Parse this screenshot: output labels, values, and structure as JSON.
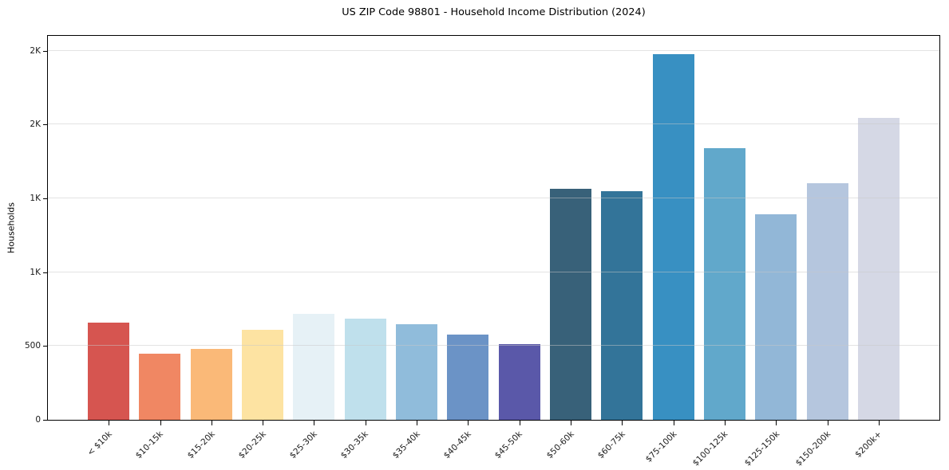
{
  "title": "US ZIP Code 98801 - Household Income Distribution (2024)",
  "chart_data": {
    "type": "bar",
    "title": "US ZIP Code 98801 - Household Income Distribution (2024)",
    "xlabel": "",
    "ylabel": "Households",
    "categories": [
      "< $10k",
      "$10-15k",
      "$15-20k",
      "$20-25k",
      "$25-30k",
      "$30-35k",
      "$35-40k",
      "$40-45k",
      "$45-50k",
      "$50-60k",
      "$60-75k",
      "$75-100k",
      "$100-125k",
      "$125-150k",
      "$150-200k",
      "$200k+"
    ],
    "values": [
      660,
      450,
      480,
      610,
      715,
      685,
      645,
      575,
      515,
      1565,
      1550,
      2475,
      1840,
      1390,
      1600,
      2045
    ],
    "bar_colors": [
      "#d65550",
      "#f08763",
      "#fab978",
      "#fde3a2",
      "#e6f1f6",
      "#bfe0ec",
      "#90bcdb",
      "#6b93c6",
      "#5a58a9",
      "#386179",
      "#337499",
      "#3890c2",
      "#61a8cb",
      "#92b7d7",
      "#b5c6de",
      "#d5d8e5"
    ],
    "ylim": [
      0,
      2600
    ],
    "yticks": [
      {
        "value": 0,
        "label": "0"
      },
      {
        "value": 500,
        "label": "500"
      },
      {
        "value": 1000,
        "label": "1K"
      },
      {
        "value": 1500,
        "label": "1K"
      },
      {
        "value": 2000,
        "label": "2K"
      },
      {
        "value": 2500,
        "label": "2K"
      }
    ],
    "gridlines": [
      500,
      1000,
      1500,
      2000,
      2500
    ],
    "grid": "horizontal, drawn above bars",
    "legend": "none"
  },
  "colors": {
    "background": "#ffffff",
    "spine": "#000000",
    "grid": "#e8e8e8",
    "text": "#1a1a1a"
  }
}
